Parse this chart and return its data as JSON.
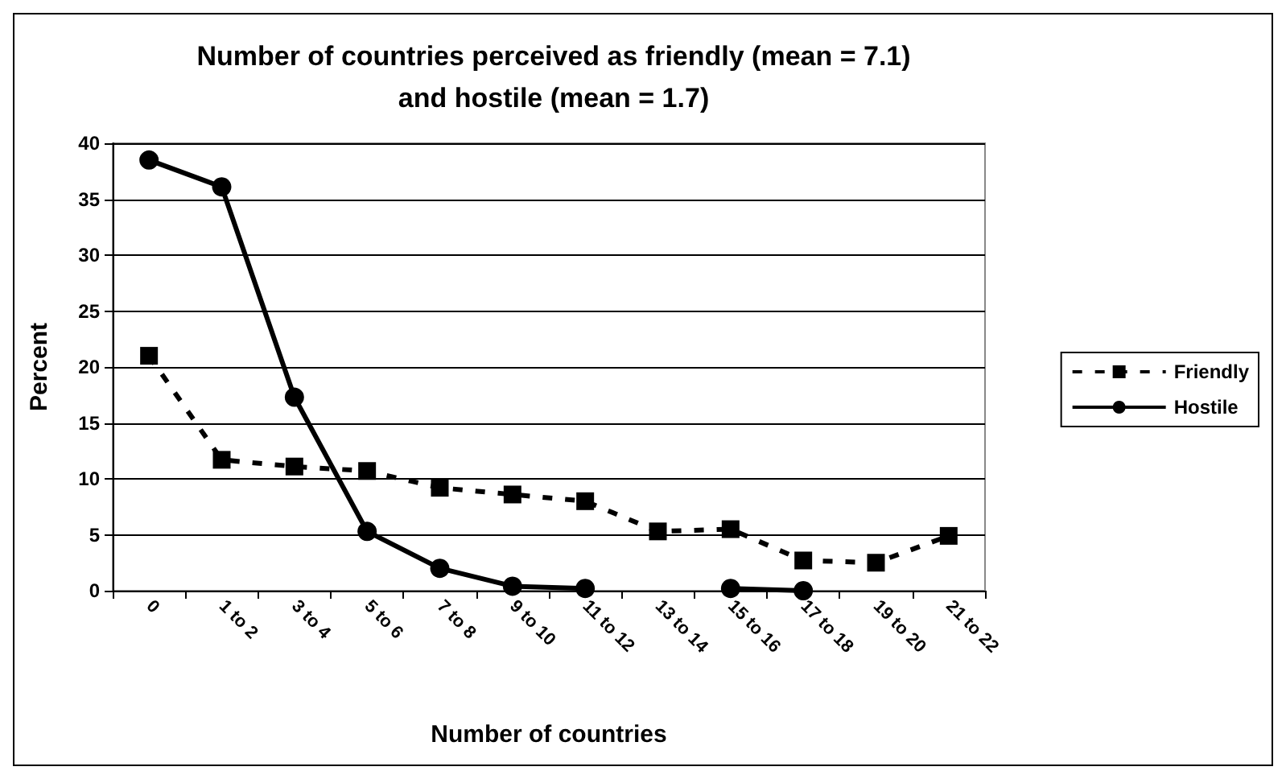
{
  "chart_data": {
    "type": "line",
    "title": "Number of countries perceived as friendly (mean = 7.1)\nand hostile (mean = 1.7)",
    "xlabel": "Number of countries",
    "ylabel": "Percent",
    "categories": [
      "0",
      "1 to 2",
      "3 to 4",
      "5 to 6",
      "7 to 8",
      "9 to 10",
      "11 to 12",
      "13 to 14",
      "15 to 16",
      "17 to 18",
      "19 to 20",
      "21 to 22"
    ],
    "series": [
      {
        "name": "Friendly",
        "color": "#000000",
        "marker": "square",
        "line_style": "dashed",
        "values": [
          21,
          11.7,
          11.1,
          10.7,
          9.2,
          8.6,
          8.0,
          5.3,
          5.5,
          2.7,
          2.5,
          4.9
        ]
      },
      {
        "name": "Hostile",
        "color": "#000000",
        "marker": "circle",
        "line_style": "solid",
        "values": [
          38.5,
          36.1,
          17.3,
          5.3,
          2.0,
          0.4,
          0.2,
          null,
          0.2,
          0.0,
          null,
          null
        ]
      }
    ],
    "ylim": [
      0,
      40
    ],
    "yticks": [
      0,
      5,
      10,
      15,
      20,
      25,
      30,
      35,
      40
    ],
    "grid": "y",
    "legend": "right"
  }
}
